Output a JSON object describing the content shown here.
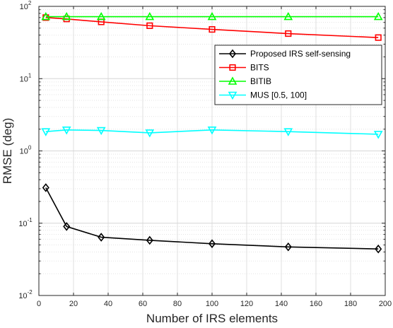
{
  "chart_data": {
    "type": "line",
    "xlabel": "Number of IRS elements",
    "ylabel": "RMSE (deg)",
    "xlim": [
      0,
      200
    ],
    "ylim": [
      0.01,
      100
    ],
    "yscale": "log",
    "grid": true,
    "legend_position": "top-right",
    "x_ticks": [
      "0",
      "20",
      "40",
      "60",
      "80",
      "100",
      "120",
      "140",
      "160",
      "180",
      "200"
    ],
    "y_ticks": [
      {
        "base": "10",
        "exp": "-2"
      },
      {
        "base": "10",
        "exp": "-1"
      },
      {
        "base": "10",
        "exp": "0"
      },
      {
        "base": "10",
        "exp": "1"
      },
      {
        "base": "10",
        "exp": "2"
      }
    ],
    "x": [
      4,
      16,
      36,
      64,
      100,
      144,
      196
    ],
    "series": [
      {
        "name": "Proposed IRS self-sensing",
        "color": "#000000",
        "marker": "diamond",
        "values": [
          0.31,
          0.09,
          0.064,
          0.058,
          0.052,
          0.047,
          0.044
        ]
      },
      {
        "name": "BITS",
        "color": "#ff0000",
        "marker": "square",
        "values": [
          70,
          67,
          61,
          54,
          48,
          42,
          37
        ]
      },
      {
        "name": "BITIB",
        "color": "#00ff00",
        "marker": "triangle-up",
        "values": [
          72,
          72,
          72,
          72,
          72,
          72,
          72
        ]
      },
      {
        "name": "MUS [0.5, 100]",
        "color": "#00ffff",
        "marker": "triangle-down",
        "values": [
          1.85,
          1.95,
          1.92,
          1.78,
          1.95,
          1.85,
          1.7
        ]
      }
    ]
  }
}
